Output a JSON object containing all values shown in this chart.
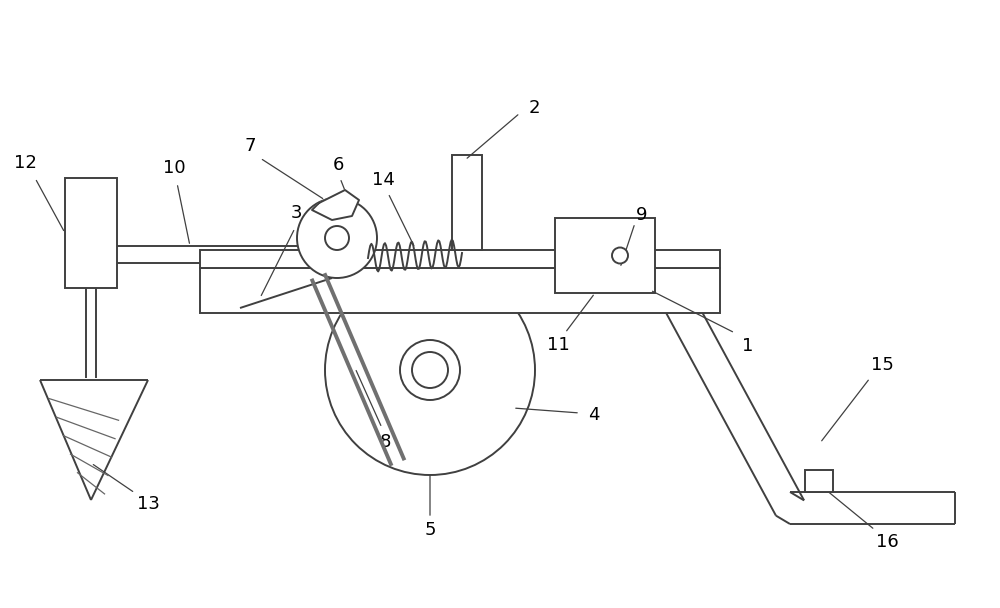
{
  "bg_color": "#ffffff",
  "line_color": "#404040",
  "lw": 1.4,
  "fs": 13
}
